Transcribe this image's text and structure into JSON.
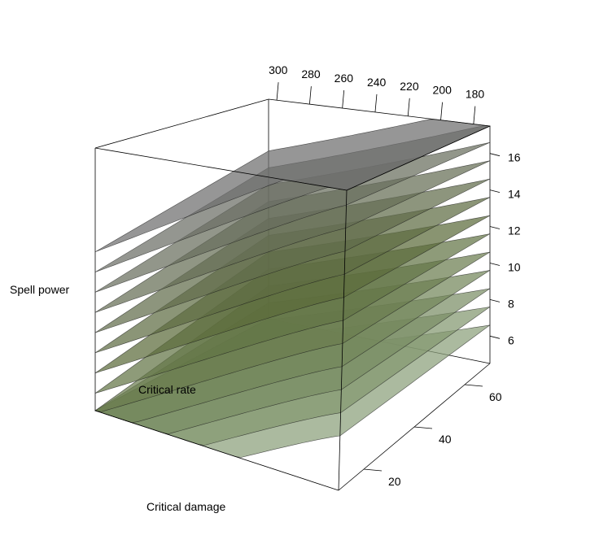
{
  "chart_data": {
    "type": "surface3d",
    "title": "",
    "axes": {
      "x": {
        "label": "Critical damage",
        "ticks": [
          180,
          200,
          220,
          240,
          260,
          280,
          300
        ],
        "range": [
          170,
          305
        ]
      },
      "y": {
        "label": "Critical rate",
        "ticks": [
          20,
          40,
          60
        ],
        "range": [
          10,
          70
        ]
      },
      "z": {
        "label": "Spell power",
        "ticks": [
          6,
          8,
          10,
          12,
          14,
          16
        ],
        "range": [
          4.5,
          17.5
        ]
      }
    },
    "surface_levels": [
      4,
      5,
      6,
      7,
      8,
      9,
      10,
      11,
      12,
      13,
      14,
      15,
      16
    ],
    "colors": {
      "surface_low": "#8aa07a",
      "surface_mid": "#5b6b3a",
      "surface_high": "#6e6e6e",
      "edge": "#1a1a1a"
    },
    "grid": false
  }
}
